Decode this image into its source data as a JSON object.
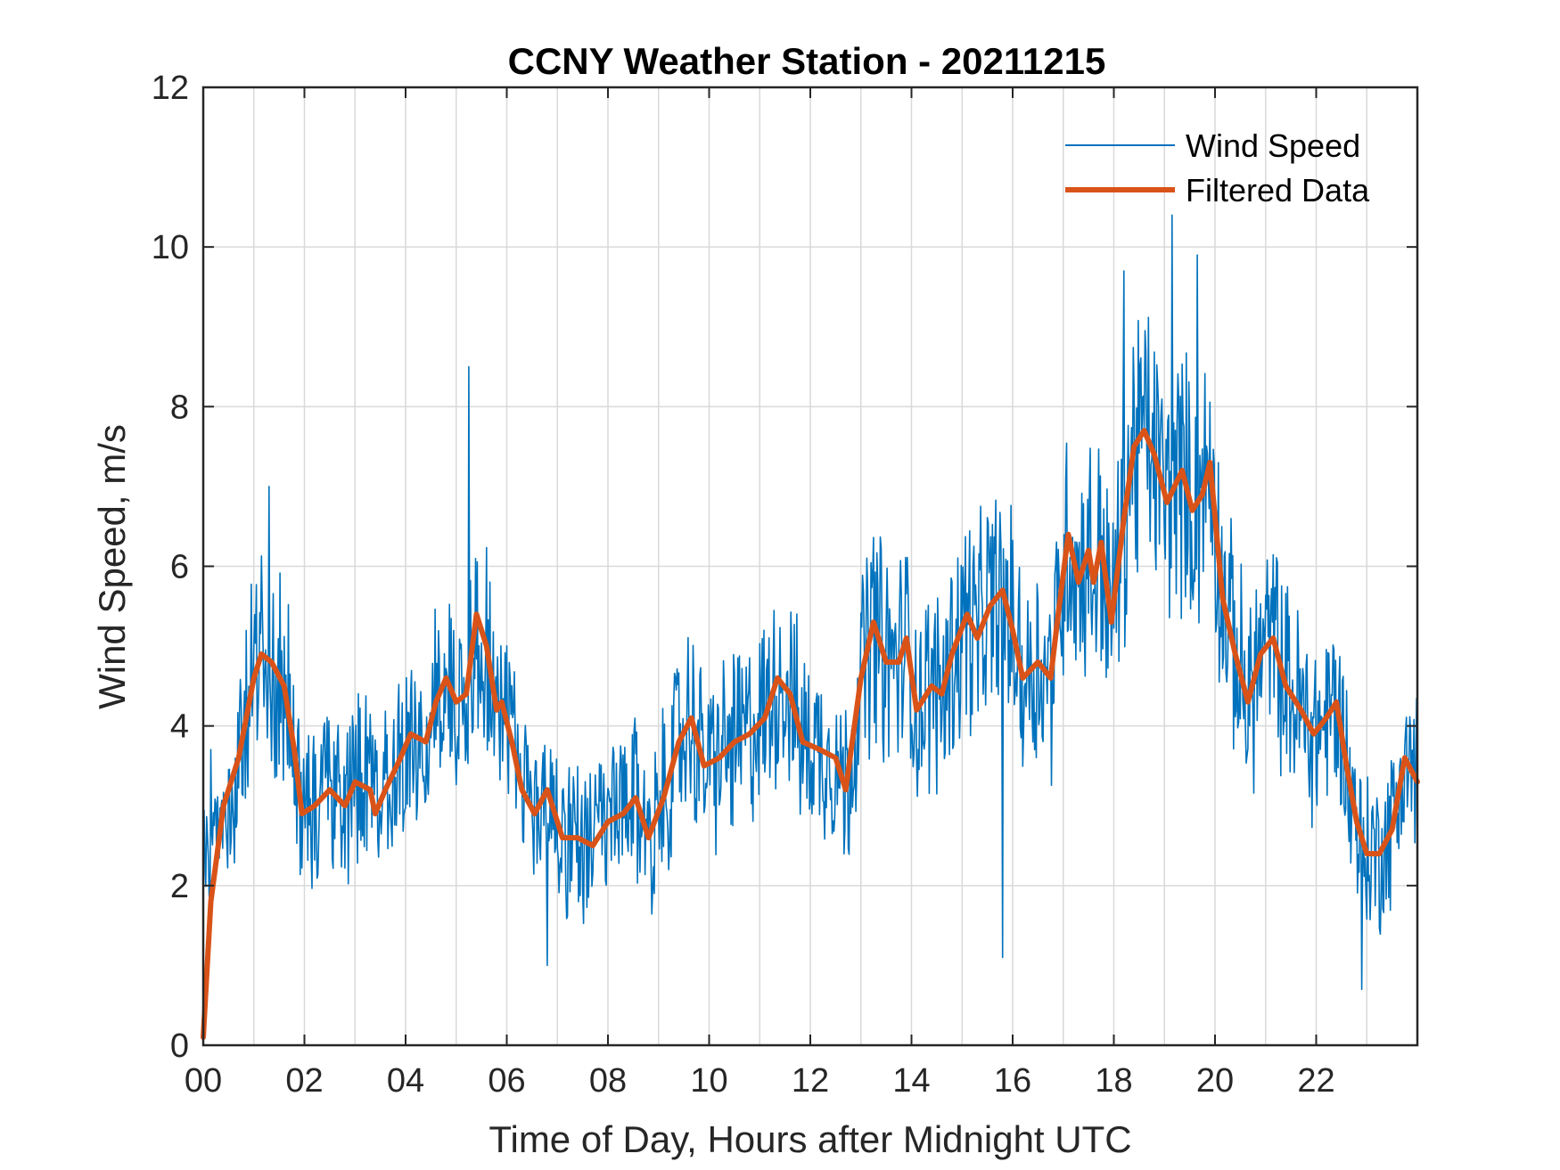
{
  "chart_data": {
    "type": "line",
    "title": "CCNY Weather Station - 20211215",
    "xlabel": "Time of Day, Hours after Midnight UTC",
    "ylabel": "Wind Speed, m/s",
    "xlim": [
      0,
      24
    ],
    "ylim": [
      0,
      12
    ],
    "grid": true,
    "legend_position": "top-right",
    "x_ticks": [
      0,
      2,
      4,
      6,
      8,
      10,
      12,
      14,
      16,
      18,
      20,
      22
    ],
    "x_tick_labels": [
      "00",
      "02",
      "04",
      "06",
      "08",
      "10",
      "12",
      "14",
      "16",
      "18",
      "20",
      "22"
    ],
    "x_minor_grid_step": 1,
    "y_ticks": [
      0,
      2,
      4,
      6,
      8,
      10,
      12
    ],
    "y_tick_labels": [
      "0",
      "2",
      "4",
      "6",
      "8",
      "10",
      "12"
    ],
    "colors": {
      "wind_speed": "#0072BD",
      "filtered": "#D95319",
      "grid": "#d9d9d9",
      "axis": "#262626"
    },
    "series": [
      {
        "name": "Wind Speed",
        "style": "thin",
        "description": "raw 1-minute samples; high-frequency scatter around filtered trend",
        "noise_amplitude": 1.2,
        "peak_spikes": [
          [
            1.3,
            7.0
          ],
          [
            5.25,
            8.5
          ],
          [
            18.2,
            9.7
          ],
          [
            19.15,
            10.4
          ],
          [
            19.65,
            9.9
          ]
        ],
        "dips": [
          [
            6.8,
            1.0
          ],
          [
            15.8,
            1.1
          ],
          [
            22.9,
            0.7
          ]
        ]
      },
      {
        "name": "Filtered Data",
        "style": "thick",
        "x": [
          0,
          0.15,
          0.4,
          0.7,
          1.0,
          1.15,
          1.35,
          1.6,
          1.8,
          1.95,
          2.2,
          2.5,
          2.8,
          3.0,
          3.3,
          3.4,
          3.6,
          3.9,
          4.1,
          4.4,
          4.6,
          4.8,
          5.0,
          5.2,
          5.4,
          5.6,
          5.8,
          5.9,
          6.1,
          6.3,
          6.55,
          6.8,
          7.1,
          7.4,
          7.7,
          8.0,
          8.3,
          8.55,
          8.8,
          9.1,
          9.4,
          9.65,
          9.9,
          10.2,
          10.5,
          10.8,
          11.1,
          11.35,
          11.6,
          11.85,
          12.2,
          12.5,
          12.7,
          13.0,
          13.25,
          13.5,
          13.75,
          13.9,
          14.1,
          14.4,
          14.6,
          14.8,
          15.1,
          15.3,
          15.55,
          15.8,
          16.0,
          16.2,
          16.5,
          16.75,
          16.9,
          17.1,
          17.3,
          17.5,
          17.6,
          17.75,
          17.95,
          18.2,
          18.4,
          18.6,
          18.8,
          19.05,
          19.35,
          19.55,
          19.75,
          19.9,
          20.15,
          20.4,
          20.65,
          20.9,
          21.15,
          21.4,
          21.7,
          21.95,
          22.2,
          22.4,
          22.6,
          22.8,
          23.0,
          23.25,
          23.5,
          23.75,
          24.0
        ],
        "values": [
          0.1,
          1.8,
          3.0,
          3.6,
          4.6,
          4.9,
          4.8,
          4.5,
          3.7,
          2.9,
          3.0,
          3.2,
          3.0,
          3.3,
          3.2,
          2.9,
          3.2,
          3.6,
          3.9,
          3.8,
          4.3,
          4.6,
          4.3,
          4.4,
          5.4,
          5.0,
          4.2,
          4.3,
          3.8,
          3.2,
          2.9,
          3.2,
          2.6,
          2.6,
          2.5,
          2.8,
          2.9,
          3.1,
          2.6,
          3.1,
          3.8,
          4.1,
          3.5,
          3.6,
          3.8,
          3.9,
          4.1,
          4.6,
          4.4,
          3.8,
          3.7,
          3.6,
          3.2,
          4.6,
          5.3,
          4.8,
          4.8,
          5.1,
          4.2,
          4.5,
          4.4,
          4.9,
          5.4,
          5.1,
          5.5,
          5.7,
          5.2,
          4.6,
          4.8,
          4.6,
          5.4,
          6.4,
          5.8,
          6.2,
          5.8,
          6.3,
          5.3,
          6.6,
          7.5,
          7.7,
          7.4,
          6.8,
          7.2,
          6.7,
          6.9,
          7.3,
          5.6,
          4.9,
          4.3,
          4.9,
          5.1,
          4.5,
          4.2,
          3.9,
          4.1,
          4.3,
          3.5,
          2.8,
          2.4,
          2.4,
          2.7,
          3.6,
          3.3
        ]
      }
    ]
  }
}
